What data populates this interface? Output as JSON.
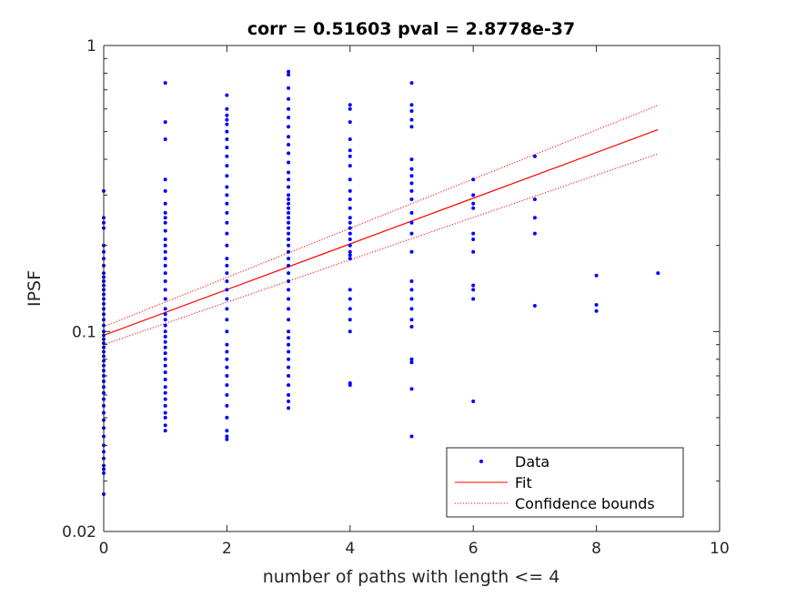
{
  "chart_data": {
    "type": "scatter",
    "title": "corr = 0.51603 pval = 2.8778e-37",
    "xlabel": "number of paths with length <= 4",
    "ylabel": "IPSF",
    "xlim": [
      0,
      10
    ],
    "ylim": [
      0.02,
      1
    ],
    "yscale": "log",
    "xticks": [
      0,
      2,
      4,
      6,
      8,
      10
    ],
    "xtick_labels": [
      "0",
      "2",
      "4",
      "6",
      "8",
      "10"
    ],
    "yticks": [
      0.02,
      0.1,
      1
    ],
    "ytick_labels": [
      "0.02",
      "0.1",
      "1"
    ],
    "grid": false,
    "legend": {
      "location": "bottom-right",
      "entries": [
        "Data",
        "Fit",
        "Confidence bounds"
      ]
    },
    "colors": {
      "data": "#0000ff",
      "fit": "#ff0000",
      "bounds": "#ff0000",
      "axes": "#262626"
    },
    "series": [
      {
        "name": "Data",
        "style": "points",
        "points": [
          [
            0,
            0.31
          ],
          [
            0,
            0.25
          ],
          [
            0,
            0.24
          ],
          [
            0,
            0.23
          ],
          [
            0,
            0.2
          ],
          [
            0,
            0.19
          ],
          [
            0,
            0.18
          ],
          [
            0,
            0.17
          ],
          [
            0,
            0.16
          ],
          [
            0,
            0.155
          ],
          [
            0,
            0.15
          ],
          [
            0,
            0.145
          ],
          [
            0,
            0.14
          ],
          [
            0,
            0.135
          ],
          [
            0,
            0.13
          ],
          [
            0,
            0.125
          ],
          [
            0,
            0.12
          ],
          [
            0,
            0.115
          ],
          [
            0,
            0.11
          ],
          [
            0,
            0.105
          ],
          [
            0,
            0.1
          ],
          [
            0,
            0.097
          ],
          [
            0,
            0.094
          ],
          [
            0,
            0.091
          ],
          [
            0,
            0.088
          ],
          [
            0,
            0.085
          ],
          [
            0,
            0.082
          ],
          [
            0,
            0.079
          ],
          [
            0,
            0.076
          ],
          [
            0,
            0.073
          ],
          [
            0,
            0.07
          ],
          [
            0,
            0.067
          ],
          [
            0,
            0.064
          ],
          [
            0,
            0.061
          ],
          [
            0,
            0.058
          ],
          [
            0,
            0.055
          ],
          [
            0,
            0.052
          ],
          [
            0,
            0.049
          ],
          [
            0,
            0.046
          ],
          [
            0,
            0.043
          ],
          [
            0,
            0.04
          ],
          [
            0,
            0.038
          ],
          [
            0,
            0.036
          ],
          [
            0,
            0.034
          ],
          [
            0,
            0.033
          ],
          [
            0,
            0.032
          ],
          [
            0,
            0.027
          ],
          [
            1,
            0.74
          ],
          [
            1,
            0.54
          ],
          [
            1,
            0.47
          ],
          [
            1,
            0.34
          ],
          [
            1,
            0.31
          ],
          [
            1,
            0.28
          ],
          [
            1,
            0.26
          ],
          [
            1,
            0.25
          ],
          [
            1,
            0.24
          ],
          [
            1,
            0.225
          ],
          [
            1,
            0.21
          ],
          [
            1,
            0.2
          ],
          [
            1,
            0.19
          ],
          [
            1,
            0.18
          ],
          [
            1,
            0.17
          ],
          [
            1,
            0.16
          ],
          [
            1,
            0.15
          ],
          [
            1,
            0.14
          ],
          [
            1,
            0.13
          ],
          [
            1,
            0.12
          ],
          [
            1,
            0.115
          ],
          [
            1,
            0.11
          ],
          [
            1,
            0.105
          ],
          [
            1,
            0.1
          ],
          [
            1,
            0.096
          ],
          [
            1,
            0.092
          ],
          [
            1,
            0.088
          ],
          [
            1,
            0.084
          ],
          [
            1,
            0.08
          ],
          [
            1,
            0.076
          ],
          [
            1,
            0.072
          ],
          [
            1,
            0.068
          ],
          [
            1,
            0.064
          ],
          [
            1,
            0.061
          ],
          [
            1,
            0.058
          ],
          [
            1,
            0.055
          ],
          [
            1,
            0.052
          ],
          [
            1,
            0.05
          ],
          [
            1,
            0.047
          ],
          [
            1,
            0.045
          ],
          [
            2,
            0.67
          ],
          [
            2,
            0.6
          ],
          [
            2,
            0.57
          ],
          [
            2,
            0.55
          ],
          [
            2,
            0.53
          ],
          [
            2,
            0.5
          ],
          [
            2,
            0.47
          ],
          [
            2,
            0.44
          ],
          [
            2,
            0.41
          ],
          [
            2,
            0.38
          ],
          [
            2,
            0.35
          ],
          [
            2,
            0.32
          ],
          [
            2,
            0.3
          ],
          [
            2,
            0.28
          ],
          [
            2,
            0.26
          ],
          [
            2,
            0.24
          ],
          [
            2,
            0.22
          ],
          [
            2,
            0.2
          ],
          [
            2,
            0.18
          ],
          [
            2,
            0.17
          ],
          [
            2,
            0.16
          ],
          [
            2,
            0.15
          ],
          [
            2,
            0.14
          ],
          [
            2,
            0.13
          ],
          [
            2,
            0.12
          ],
          [
            2,
            0.11
          ],
          [
            2,
            0.1
          ],
          [
            2,
            0.09
          ],
          [
            2,
            0.085
          ],
          [
            2,
            0.08
          ],
          [
            2,
            0.075
          ],
          [
            2,
            0.07
          ],
          [
            2,
            0.065
          ],
          [
            2,
            0.06
          ],
          [
            2,
            0.055
          ],
          [
            2,
            0.05
          ],
          [
            2,
            0.045
          ],
          [
            2,
            0.043
          ],
          [
            2,
            0.042
          ],
          [
            3,
            0.81
          ],
          [
            3,
            0.79
          ],
          [
            3,
            0.71
          ],
          [
            3,
            0.65
          ],
          [
            3,
            0.6
          ],
          [
            3,
            0.56
          ],
          [
            3,
            0.52
          ],
          [
            3,
            0.48
          ],
          [
            3,
            0.45
          ],
          [
            3,
            0.42
          ],
          [
            3,
            0.39
          ],
          [
            3,
            0.36
          ],
          [
            3,
            0.34
          ],
          [
            3,
            0.32
          ],
          [
            3,
            0.3
          ],
          [
            3,
            0.29
          ],
          [
            3,
            0.28
          ],
          [
            3,
            0.27
          ],
          [
            3,
            0.26
          ],
          [
            3,
            0.25
          ],
          [
            3,
            0.24
          ],
          [
            3,
            0.23
          ],
          [
            3,
            0.22
          ],
          [
            3,
            0.21
          ],
          [
            3,
            0.2
          ],
          [
            3,
            0.19
          ],
          [
            3,
            0.18
          ],
          [
            3,
            0.17
          ],
          [
            3,
            0.16
          ],
          [
            3,
            0.15
          ],
          [
            3,
            0.14
          ],
          [
            3,
            0.13
          ],
          [
            3,
            0.12
          ],
          [
            3,
            0.11
          ],
          [
            3,
            0.1
          ],
          [
            3,
            0.095
          ],
          [
            3,
            0.09
          ],
          [
            3,
            0.085
          ],
          [
            3,
            0.08
          ],
          [
            3,
            0.075
          ],
          [
            3,
            0.07
          ],
          [
            3,
            0.065
          ],
          [
            3,
            0.06
          ],
          [
            3,
            0.057
          ],
          [
            3,
            0.054
          ],
          [
            4,
            0.62
          ],
          [
            4,
            0.6
          ],
          [
            4,
            0.54
          ],
          [
            4,
            0.47
          ],
          [
            4,
            0.43
          ],
          [
            4,
            0.41
          ],
          [
            4,
            0.38
          ],
          [
            4,
            0.34
          ],
          [
            4,
            0.31
          ],
          [
            4,
            0.29
          ],
          [
            4,
            0.27
          ],
          [
            4,
            0.25
          ],
          [
            4,
            0.24
          ],
          [
            4,
            0.23
          ],
          [
            4,
            0.22
          ],
          [
            4,
            0.21
          ],
          [
            4,
            0.2
          ],
          [
            4,
            0.19
          ],
          [
            4,
            0.185
          ],
          [
            4,
            0.18
          ],
          [
            4,
            0.14
          ],
          [
            4,
            0.13
          ],
          [
            4,
            0.12
          ],
          [
            4,
            0.11
          ],
          [
            4,
            0.1
          ],
          [
            4,
            0.066
          ],
          [
            4,
            0.065
          ],
          [
            5,
            0.74
          ],
          [
            5,
            0.62
          ],
          [
            5,
            0.59
          ],
          [
            5,
            0.55
          ],
          [
            5,
            0.52
          ],
          [
            5,
            0.4
          ],
          [
            5,
            0.37
          ],
          [
            5,
            0.35
          ],
          [
            5,
            0.33
          ],
          [
            5,
            0.31
          ],
          [
            5,
            0.29
          ],
          [
            5,
            0.26
          ],
          [
            5,
            0.24
          ],
          [
            5,
            0.22
          ],
          [
            5,
            0.19
          ],
          [
            5,
            0.15
          ],
          [
            5,
            0.14
          ],
          [
            5,
            0.13
          ],
          [
            5,
            0.12
          ],
          [
            5,
            0.11
          ],
          [
            5,
            0.104
          ],
          [
            5,
            0.08
          ],
          [
            5,
            0.078
          ],
          [
            5,
            0.063
          ],
          [
            5,
            0.043
          ],
          [
            6,
            0.34
          ],
          [
            6,
            0.3
          ],
          [
            6,
            0.28
          ],
          [
            6,
            0.27
          ],
          [
            6,
            0.22
          ],
          [
            6,
            0.21
          ],
          [
            6,
            0.19
          ],
          [
            6,
            0.145
          ],
          [
            6,
            0.14
          ],
          [
            6,
            0.13
          ],
          [
            6,
            0.057
          ],
          [
            7,
            0.41
          ],
          [
            7,
            0.29
          ],
          [
            7,
            0.25
          ],
          [
            7,
            0.22
          ],
          [
            7,
            0.123
          ],
          [
            8,
            0.157
          ],
          [
            8,
            0.124
          ],
          [
            8,
            0.118
          ],
          [
            9,
            0.16
          ]
        ]
      },
      {
        "name": "Fit",
        "style": "solid-line",
        "x": [
          0,
          9
        ],
        "y": [
          0.097,
          0.508
        ]
      },
      {
        "name": "Confidence bounds",
        "style": "dotted-line",
        "x": [
          0,
          9
        ],
        "y_upper": [
          0.104,
          0.618
        ],
        "y_lower": [
          0.09,
          0.418
        ]
      }
    ]
  }
}
